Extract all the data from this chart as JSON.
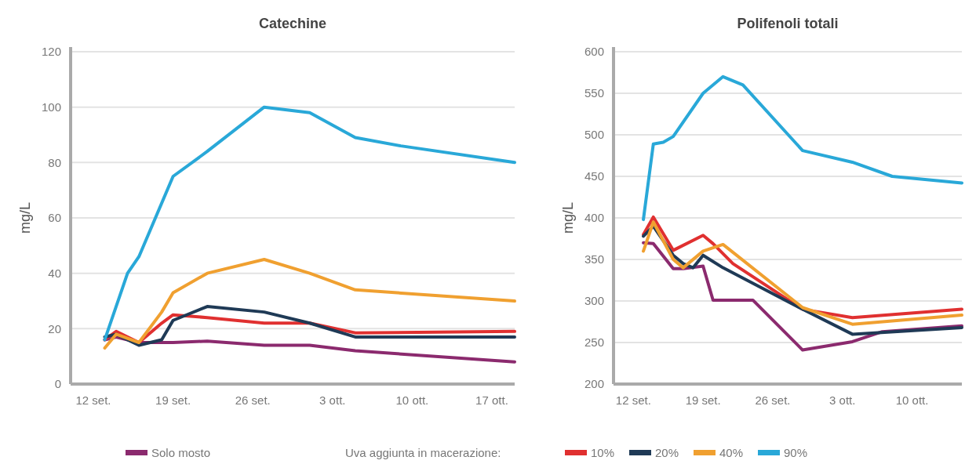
{
  "chart_data": [
    {
      "type": "line",
      "title": "Catechine",
      "ylabel": "mg/L",
      "xlim": [
        "--09-10",
        "--10-19"
      ],
      "ylim": [
        0,
        120
      ],
      "yticks": [
        0,
        20,
        40,
        60,
        80,
        100,
        120
      ],
      "xticks": [
        {
          "value": "--09-12",
          "label": "12 set."
        },
        {
          "value": "--09-19",
          "label": "19 set."
        },
        {
          "value": "--09-26",
          "label": "26 set."
        },
        {
          "value": "--10-03",
          "label": "3 ott."
        },
        {
          "value": "--10-10",
          "label": "10 ott."
        },
        {
          "value": "--10-17",
          "label": "17 ott."
        }
      ],
      "grid": "y",
      "legend": "bottom",
      "legend_title": "Uva aggiunta in macerazione:",
      "line_style": "solid",
      "marker": "none",
      "series": [
        {
          "name": "Solo mosto",
          "color": "#8b2a6e",
          "x": [
            "--09-13",
            "--09-14",
            "--09-16",
            "--09-19",
            "--09-22",
            "--09-27",
            "--10-01",
            "--10-05",
            "--10-19"
          ],
          "values": [
            16,
            17,
            15,
            15,
            15.5,
            14,
            14,
            12,
            8
          ]
        },
        {
          "name": "10%",
          "color": "#e03030",
          "x": [
            "--09-13",
            "--09-14",
            "--09-16",
            "--09-18",
            "--09-19",
            "--09-22",
            "--09-27",
            "--10-01",
            "--10-05",
            "--10-19"
          ],
          "values": [
            16,
            19,
            15,
            22,
            25,
            24,
            22,
            22,
            18.5,
            19
          ]
        },
        {
          "name": "20%",
          "color": "#1f3a56",
          "x": [
            "--09-13",
            "--09-14",
            "--09-16",
            "--09-18",
            "--09-19",
            "--09-22",
            "--09-27",
            "--10-01",
            "--10-05",
            "--10-19"
          ],
          "values": [
            17,
            18,
            14,
            16,
            23,
            28,
            26,
            22,
            17,
            17
          ]
        },
        {
          "name": "40%",
          "color": "#f0a030",
          "x": [
            "--09-13",
            "--09-14",
            "--09-16",
            "--09-18",
            "--09-19",
            "--09-22",
            "--09-27",
            "--10-01",
            "--10-05",
            "--10-19"
          ],
          "values": [
            13,
            18,
            15,
            26,
            33,
            40,
            45,
            40,
            34,
            30
          ]
        },
        {
          "name": "90%",
          "color": "#29a8d8",
          "x": [
            "--09-13",
            "--09-15",
            "--09-16",
            "--09-19",
            "--09-22",
            "--09-27",
            "--10-01",
            "--10-05",
            "--10-09",
            "--10-19"
          ],
          "values": [
            16,
            40,
            46,
            75,
            84,
            100,
            98,
            89,
            86,
            80
          ]
        }
      ]
    },
    {
      "type": "line",
      "title": "Polifenoli totali",
      "ylabel": "mg/L",
      "xlim": [
        "--09-10",
        "--10-15"
      ],
      "ylim": [
        200,
        600
      ],
      "yticks": [
        200,
        250,
        300,
        350,
        400,
        450,
        500,
        550,
        600
      ],
      "xticks": [
        {
          "value": "--09-12",
          "label": "12 set."
        },
        {
          "value": "--09-19",
          "label": "19 set."
        },
        {
          "value": "--09-26",
          "label": "26 set."
        },
        {
          "value": "--10-03",
          "label": "3 ott."
        },
        {
          "value": "--10-10",
          "label": "10 ott."
        }
      ],
      "grid": "y",
      "line_style": "solid",
      "marker": "none",
      "series": [
        {
          "color": "#8b2a6e",
          "x": [
            "--09-13",
            "--09-14",
            "--09-16",
            "--09-17",
            "--09-19",
            "--09-20",
            "--09-24",
            "--09-29",
            "--10-04",
            "--10-07",
            "--10-15"
          ],
          "values": [
            370,
            369,
            339,
            339,
            342,
            301,
            301,
            241,
            251,
            263,
            270
          ]
        },
        {
          "color": "#e03030",
          "x": [
            "--09-13",
            "--09-14",
            "--09-16",
            "--09-19",
            "--09-20",
            "--09-22",
            "--09-29",
            "--10-04",
            "--10-15"
          ],
          "values": [
            380,
            401,
            361,
            379,
            369,
            345,
            290,
            280,
            290
          ]
        },
        {
          "color": "#1f3a56",
          "x": [
            "--09-13",
            "--09-14",
            "--09-16",
            "--09-17",
            "--09-18",
            "--09-19",
            "--09-21",
            "--09-29",
            "--10-04",
            "--10-15"
          ],
          "values": [
            378,
            390,
            355,
            345,
            340,
            355,
            340,
            290,
            260,
            268
          ]
        },
        {
          "color": "#f0a030",
          "x": [
            "--09-13",
            "--09-14",
            "--09-16",
            "--09-17",
            "--09-19",
            "--09-21",
            "--09-29",
            "--10-04",
            "--10-15"
          ],
          "values": [
            360,
            395,
            350,
            340,
            360,
            368,
            292,
            272,
            283
          ]
        },
        {
          "color": "#29a8d8",
          "x": [
            "--09-13",
            "--09-14",
            "--09-15",
            "--09-16",
            "--09-19",
            "--09-21",
            "--09-23",
            "--09-29",
            "--10-04",
            "--10-08",
            "--10-15"
          ],
          "values": [
            398,
            489,
            491,
            498,
            550,
            570,
            560,
            481,
            467,
            450,
            442
          ]
        }
      ]
    }
  ]
}
